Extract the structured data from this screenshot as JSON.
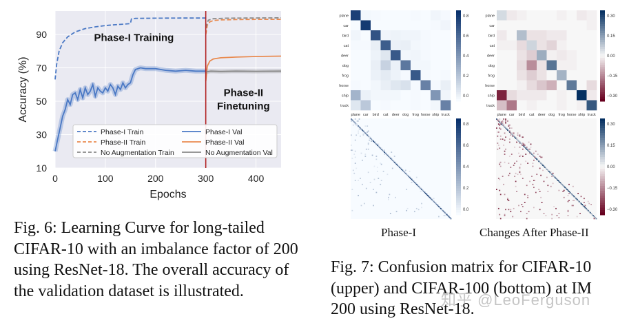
{
  "figure6": {
    "caption": "Fig. 6: Learning Curve for long-tailed CIFAR-10 with an imbalance factor of 200 using ResNet-18. The overall accuracy of the validation dataset is illustrated.",
    "chart_data": {
      "type": "line",
      "xlabel": "Epochs",
      "ylabel": "Accuracy (%)",
      "xlim": [
        0,
        450
      ],
      "ylim": [
        10,
        104
      ],
      "xticks": [
        "0",
        "100",
        "200",
        "300",
        "400"
      ],
      "yticks": [
        "10",
        "30",
        "50",
        "70",
        "90"
      ],
      "grid": true,
      "legend_position": "bottom",
      "annotations": [
        {
          "text": "Phase-I Training",
          "x": 157,
          "y": 86
        },
        {
          "text": "Phase-II",
          "x": 375,
          "y": 53
        },
        {
          "text": "Finetuning",
          "x": 375,
          "y": 45
        }
      ],
      "vline": {
        "x": 300,
        "color": "#b22222"
      },
      "series": [
        {
          "name": "Phase-I Train",
          "color": "#4a78c4",
          "dash": true,
          "x": [
            0,
            3,
            8,
            15,
            25,
            40,
            60,
            80,
            100,
            120,
            140,
            150,
            152,
            160,
            200,
            250,
            300
          ],
          "y": [
            63,
            72,
            80,
            85,
            88.5,
            91.5,
            93.5,
            94.5,
            95.3,
            95.8,
            96.2,
            96.5,
            99.3,
            99.6,
            99.7,
            99.8,
            99.8
          ]
        },
        {
          "name": "Phase-II Train",
          "color": "#e98a4f",
          "dash": true,
          "x": [
            300,
            303,
            308,
            315,
            330,
            360,
            400,
            450
          ],
          "y": [
            90,
            95.5,
            97.5,
            98.3,
            98.7,
            98.9,
            99.0,
            99.0
          ]
        },
        {
          "name": "No Augmentation Train",
          "color": "#8a8a8a",
          "dash": true,
          "x": [
            300,
            305,
            315,
            340,
            380,
            450
          ],
          "y": [
            94,
            98.5,
            99.4,
            99.7,
            99.8,
            99.9
          ]
        },
        {
          "name": "Phase-I Val",
          "color": "#4a78c4",
          "dash": false,
          "x": [
            0,
            5,
            10,
            15,
            20,
            25,
            30,
            35,
            40,
            45,
            50,
            55,
            60,
            65,
            70,
            75,
            80,
            85,
            90,
            95,
            100,
            105,
            110,
            115,
            120,
            125,
            130,
            135,
            140,
            145,
            150,
            155,
            160,
            170,
            180,
            200,
            220,
            240,
            260,
            280,
            300
          ],
          "y": [
            20,
            27,
            34,
            41,
            45,
            51,
            48,
            54,
            55,
            51,
            57,
            52,
            58,
            54,
            56,
            60,
            53,
            58,
            56,
            55,
            58,
            56,
            60,
            58,
            54,
            59,
            57,
            61,
            58,
            60,
            61,
            66,
            69,
            70,
            69.5,
            69.5,
            68.5,
            68,
            68.5,
            68,
            68
          ]
        },
        {
          "name": "Phase-II Val",
          "color": "#e98a4f",
          "dash": false,
          "x": [
            300,
            303,
            308,
            315,
            330,
            360,
            400,
            450
          ],
          "y": [
            62,
            71,
            74,
            75.3,
            76,
            76.4,
            76.8,
            77.0
          ]
        },
        {
          "name": "No Augmentation Val",
          "color": "#8a8a8a",
          "dash": false,
          "x": [
            300,
            310,
            330,
            360,
            400,
            450
          ],
          "y": [
            67.5,
            68,
            67.8,
            68,
            67.9,
            68
          ]
        }
      ]
    }
  },
  "figure7": {
    "caption": "Fig. 7: Confusion matrix for CIFAR-10 (upper) and CIFAR-100 (bottom) at IM 200 using ResNet-18.",
    "subcaptions": [
      "Phase-I",
      "Changes After Phase-II"
    ],
    "classes": [
      "plane",
      "car",
      "bird",
      "cat",
      "deer",
      "dog",
      "frog",
      "horse",
      "ship",
      "truck"
    ],
    "colorbar_left_ticks": [
      "0.8",
      "0.6",
      "0.4",
      "0.2",
      "0.0"
    ],
    "colorbar_right_ticks": [
      "0.30",
      "0.15",
      "0.00",
      "−0.15",
      "−0.30"
    ],
    "watermark": "知乎 @LeoFerguson",
    "chart_data": [
      {
        "type": "heatmap",
        "title": "Phase-I",
        "colormap": "Blues",
        "range": [
          0,
          1
        ],
        "values": [
          [
            0.92,
            0.02,
            0.01,
            0.0,
            0.0,
            0.0,
            0.01,
            0.0,
            0.03,
            0.01
          ],
          [
            0.0,
            0.95,
            0.0,
            0.0,
            0.0,
            0.0,
            0.0,
            0.0,
            0.01,
            0.03
          ],
          [
            0.03,
            0.0,
            0.83,
            0.03,
            0.04,
            0.03,
            0.03,
            0.01,
            0.0,
            0.0
          ],
          [
            0.01,
            0.01,
            0.06,
            0.78,
            0.05,
            0.06,
            0.02,
            0.01,
            0.0,
            0.0
          ],
          [
            0.0,
            0.0,
            0.04,
            0.1,
            0.8,
            0.02,
            0.03,
            0.01,
            0.0,
            0.0
          ],
          [
            0.0,
            0.0,
            0.06,
            0.2,
            0.05,
            0.65,
            0.02,
            0.02,
            0.0,
            0.0
          ],
          [
            0.0,
            0.0,
            0.05,
            0.08,
            0.04,
            0.01,
            0.8,
            0.01,
            0.0,
            0.01
          ],
          [
            0.01,
            0.0,
            0.02,
            0.06,
            0.1,
            0.13,
            0.01,
            0.6,
            0.01,
            0.06
          ],
          [
            0.35,
            0.05,
            0.02,
            0.02,
            0.02,
            0.0,
            0.01,
            0.0,
            0.5,
            0.03
          ],
          [
            0.1,
            0.25,
            0.0,
            0.01,
            0.0,
            0.0,
            0.01,
            0.0,
            0.02,
            0.6
          ]
        ]
      },
      {
        "type": "heatmap",
        "title": "Changes After Phase-II",
        "colormap": "RdBu",
        "range": [
          -0.35,
          0.35
        ],
        "values": [
          [
            0.05,
            -0.02,
            -0.01,
            0.0,
            0.0,
            0.0,
            -0.01,
            0.0,
            -0.02,
            -0.01
          ],
          [
            0.0,
            0.0,
            0.0,
            0.0,
            0.0,
            0.0,
            0.0,
            0.0,
            0.0,
            -0.01
          ],
          [
            -0.02,
            0.0,
            0.1,
            -0.03,
            -0.03,
            -0.02,
            -0.02,
            0.0,
            0.0,
            0.0
          ],
          [
            -0.01,
            -0.01,
            -0.04,
            0.06,
            -0.03,
            -0.05,
            -0.01,
            0.0,
            0.0,
            0.0
          ],
          [
            0.0,
            0.0,
            -0.03,
            -0.06,
            0.13,
            -0.01,
            -0.02,
            -0.01,
            0.0,
            0.0
          ],
          [
            0.0,
            0.0,
            -0.04,
            -0.15,
            -0.03,
            0.23,
            -0.01,
            -0.01,
            0.0,
            0.0
          ],
          [
            0.0,
            0.0,
            -0.03,
            -0.06,
            -0.03,
            0.0,
            0.12,
            0.0,
            0.0,
            0.0
          ],
          [
            0.0,
            0.0,
            -0.01,
            -0.04,
            -0.07,
            -0.1,
            0.0,
            0.22,
            0.0,
            -0.04
          ],
          [
            -0.3,
            -0.04,
            -0.02,
            -0.02,
            -0.02,
            0.0,
            -0.01,
            0.0,
            0.38,
            -0.02
          ],
          [
            -0.08,
            -0.18,
            0.0,
            -0.01,
            0.0,
            0.0,
            -0.01,
            0.0,
            -0.01,
            0.28
          ]
        ]
      },
      {
        "type": "heatmap",
        "title": "Phase-I",
        "colormap": "Blues",
        "range": [
          0,
          1
        ],
        "values": "100x100 CIFAR-100 matrix (diagonal-dominant, sparse off-diagonal)"
      },
      {
        "type": "heatmap",
        "title": "Changes After Phase-II",
        "colormap": "RdBu",
        "range": [
          -0.35,
          0.35
        ],
        "values": "100x100 CIFAR-100 change matrix (blue diagonal, scattered red off-diagonal)"
      }
    ]
  }
}
